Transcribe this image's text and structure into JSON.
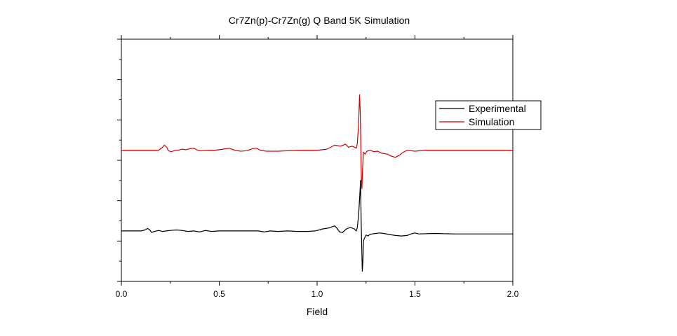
{
  "chart_data": {
    "type": "line",
    "title": "Cr7Zn(p)-Cr7Zn(g) Q Band 5K Simulation",
    "xlabel": "Field",
    "ylabel": "",
    "xlim": [
      0.0,
      2.0
    ],
    "ylim": [
      -5,
      19
    ],
    "x_ticks": [
      "0.0",
      "0.5",
      "1.0",
      "1.5",
      "2.0"
    ],
    "grid": false,
    "legend_position": "right",
    "series": [
      {
        "name": "Experimental",
        "color": "#000000",
        "points": [
          [
            0.0,
            0.0
          ],
          [
            0.1,
            0.0
          ],
          [
            0.12,
            0.1
          ],
          [
            0.135,
            0.25
          ],
          [
            0.145,
            0.1
          ],
          [
            0.155,
            -0.15
          ],
          [
            0.17,
            -0.05
          ],
          [
            0.19,
            0.05
          ],
          [
            0.21,
            -0.05
          ],
          [
            0.23,
            0.0
          ],
          [
            0.25,
            0.05
          ],
          [
            0.28,
            0.1
          ],
          [
            0.31,
            0.05
          ],
          [
            0.34,
            -0.05
          ],
          [
            0.37,
            0.0
          ],
          [
            0.4,
            -0.1
          ],
          [
            0.43,
            0.05
          ],
          [
            0.46,
            -0.05
          ],
          [
            0.5,
            0.0
          ],
          [
            0.55,
            0.0
          ],
          [
            0.6,
            0.0
          ],
          [
            0.7,
            0.0
          ],
          [
            0.73,
            -0.1
          ],
          [
            0.76,
            0.0
          ],
          [
            0.8,
            -0.05
          ],
          [
            0.85,
            0.0
          ],
          [
            0.9,
            -0.05
          ],
          [
            0.95,
            -0.05
          ],
          [
            0.99,
            0.0
          ],
          [
            1.03,
            0.2
          ],
          [
            1.06,
            0.3
          ],
          [
            1.09,
            0.5
          ],
          [
            1.1,
            0.3
          ],
          [
            1.115,
            -0.1
          ],
          [
            1.13,
            -0.15
          ],
          [
            1.15,
            0.2
          ],
          [
            1.17,
            0.35
          ],
          [
            1.19,
            0.2
          ],
          [
            1.2,
            0.0
          ],
          [
            1.205,
            0.3
          ],
          [
            1.212,
            1.5
          ],
          [
            1.218,
            3.5
          ],
          [
            1.222,
            5.0
          ],
          [
            1.225,
            1.0
          ],
          [
            1.228,
            -1.5
          ],
          [
            1.231,
            -4.0
          ],
          [
            1.234,
            -3.0
          ],
          [
            1.237,
            -1.0
          ],
          [
            1.24,
            -0.8
          ],
          [
            1.245,
            -0.6
          ],
          [
            1.25,
            -0.4
          ],
          [
            1.26,
            -0.5
          ],
          [
            1.27,
            -0.35
          ],
          [
            1.28,
            -0.3
          ],
          [
            1.3,
            -0.25
          ],
          [
            1.32,
            -0.2
          ],
          [
            1.34,
            -0.25
          ],
          [
            1.37,
            -0.35
          ],
          [
            1.4,
            -0.45
          ],
          [
            1.43,
            -0.5
          ],
          [
            1.46,
            -0.45
          ],
          [
            1.48,
            -0.3
          ],
          [
            1.5,
            -0.2
          ],
          [
            1.52,
            -0.3
          ],
          [
            1.6,
            -0.25
          ],
          [
            1.7,
            -0.3
          ],
          [
            1.8,
            -0.3
          ],
          [
            1.9,
            -0.3
          ],
          [
            2.0,
            -0.3
          ]
        ]
      },
      {
        "name": "Simulation",
        "color": "#cc0000",
        "points": [
          [
            0.0,
            8.0
          ],
          [
            0.1,
            8.0
          ],
          [
            0.19,
            8.0
          ],
          [
            0.205,
            8.2
          ],
          [
            0.22,
            8.5
          ],
          [
            0.232,
            8.3
          ],
          [
            0.24,
            7.95
          ],
          [
            0.255,
            7.85
          ],
          [
            0.27,
            7.95
          ],
          [
            0.29,
            8.0
          ],
          [
            0.31,
            8.1
          ],
          [
            0.33,
            8.05
          ],
          [
            0.35,
            8.15
          ],
          [
            0.37,
            8.2
          ],
          [
            0.39,
            8.0
          ],
          [
            0.41,
            7.95
          ],
          [
            0.44,
            8.0
          ],
          [
            0.48,
            8.0
          ],
          [
            0.52,
            8.1
          ],
          [
            0.55,
            8.2
          ],
          [
            0.58,
            8.0
          ],
          [
            0.61,
            7.9
          ],
          [
            0.64,
            7.95
          ],
          [
            0.67,
            8.15
          ],
          [
            0.69,
            8.2
          ],
          [
            0.71,
            8.0
          ],
          [
            0.74,
            7.9
          ],
          [
            0.8,
            7.9
          ],
          [
            0.9,
            8.0
          ],
          [
            1.0,
            8.0
          ],
          [
            1.05,
            8.1
          ],
          [
            1.09,
            8.5
          ],
          [
            1.12,
            8.4
          ],
          [
            1.145,
            8.6
          ],
          [
            1.16,
            8.3
          ],
          [
            1.18,
            8.4
          ],
          [
            1.2,
            8.2
          ],
          [
            1.205,
            8.6
          ],
          [
            1.212,
            10.5
          ],
          [
            1.217,
            13.5
          ],
          [
            1.22,
            12.0
          ],
          [
            1.223,
            9.0
          ],
          [
            1.226,
            5.0
          ],
          [
            1.229,
            4.2
          ],
          [
            1.232,
            6.0
          ],
          [
            1.237,
            7.8
          ],
          [
            1.245,
            7.6
          ],
          [
            1.255,
            7.9
          ],
          [
            1.27,
            8.0
          ],
          [
            1.29,
            7.85
          ],
          [
            1.31,
            7.9
          ],
          [
            1.33,
            7.7
          ],
          [
            1.36,
            7.6
          ],
          [
            1.38,
            7.4
          ],
          [
            1.4,
            7.3
          ],
          [
            1.42,
            7.5
          ],
          [
            1.44,
            7.8
          ],
          [
            1.46,
            8.0
          ],
          [
            1.5,
            7.9
          ],
          [
            1.55,
            8.0
          ],
          [
            1.6,
            8.0
          ],
          [
            1.7,
            8.0
          ],
          [
            1.8,
            8.0
          ],
          [
            1.9,
            8.0
          ],
          [
            2.0,
            8.0
          ]
        ]
      }
    ]
  }
}
